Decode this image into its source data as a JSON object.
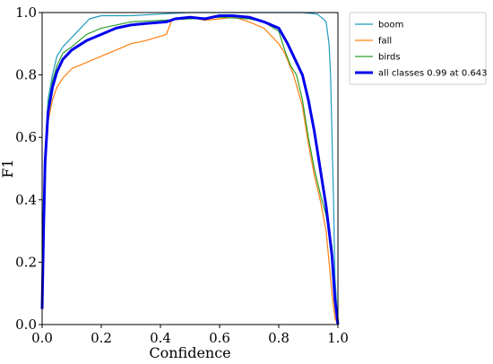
{
  "chart_data": {
    "type": "line",
    "xlabel": "Confidence",
    "ylabel": "F1",
    "xlim": [
      0,
      1
    ],
    "ylim": [
      0,
      1
    ],
    "xticks": [
      "0.0",
      "0.2",
      "0.4",
      "0.6",
      "0.8",
      "1.0"
    ],
    "yticks": [
      "0.0",
      "0.2",
      "0.4",
      "0.6",
      "0.8",
      "1.0"
    ],
    "grid": false,
    "legend_position": "outside-top-right",
    "series": [
      {
        "name": "boom",
        "color": "#1f9bbf",
        "points": [
          [
            0.0,
            0.05
          ],
          [
            0.005,
            0.3
          ],
          [
            0.01,
            0.55
          ],
          [
            0.02,
            0.72
          ],
          [
            0.035,
            0.8
          ],
          [
            0.05,
            0.86
          ],
          [
            0.07,
            0.89
          ],
          [
            0.1,
            0.92
          ],
          [
            0.13,
            0.95
          ],
          [
            0.16,
            0.98
          ],
          [
            0.2,
            0.99
          ],
          [
            0.3,
            0.99
          ],
          [
            0.4,
            0.995
          ],
          [
            0.5,
            1.0
          ],
          [
            0.6,
            1.0
          ],
          [
            0.7,
            1.0
          ],
          [
            0.8,
            1.0
          ],
          [
            0.88,
            1.0
          ],
          [
            0.93,
            0.995
          ],
          [
            0.95,
            0.98
          ],
          [
            0.96,
            0.97
          ],
          [
            0.97,
            0.9
          ],
          [
            0.975,
            0.8
          ],
          [
            0.98,
            0.6
          ],
          [
            0.985,
            0.4
          ],
          [
            0.99,
            0.15
          ],
          [
            1.0,
            0.0
          ]
        ]
      },
      {
        "name": "fall",
        "color": "#ff7f0e",
        "points": [
          [
            0.0,
            0.05
          ],
          [
            0.005,
            0.25
          ],
          [
            0.01,
            0.5
          ],
          [
            0.02,
            0.65
          ],
          [
            0.035,
            0.72
          ],
          [
            0.05,
            0.76
          ],
          [
            0.07,
            0.79
          ],
          [
            0.1,
            0.82
          ],
          [
            0.15,
            0.84
          ],
          [
            0.2,
            0.86
          ],
          [
            0.25,
            0.88
          ],
          [
            0.3,
            0.9
          ],
          [
            0.35,
            0.91
          ],
          [
            0.42,
            0.93
          ],
          [
            0.44,
            0.98
          ],
          [
            0.5,
            0.985
          ],
          [
            0.55,
            0.975
          ],
          [
            0.6,
            0.98
          ],
          [
            0.65,
            0.985
          ],
          [
            0.7,
            0.97
          ],
          [
            0.75,
            0.95
          ],
          [
            0.8,
            0.9
          ],
          [
            0.82,
            0.87
          ],
          [
            0.85,
            0.8
          ],
          [
            0.88,
            0.7
          ],
          [
            0.9,
            0.58
          ],
          [
            0.92,
            0.48
          ],
          [
            0.94,
            0.4
          ],
          [
            0.96,
            0.3
          ],
          [
            0.98,
            0.1
          ],
          [
            0.99,
            0.02
          ],
          [
            1.0,
            0.0
          ]
        ]
      },
      {
        "name": "birds",
        "color": "#2ca02c",
        "points": [
          [
            0.0,
            0.05
          ],
          [
            0.005,
            0.3
          ],
          [
            0.01,
            0.55
          ],
          [
            0.02,
            0.7
          ],
          [
            0.035,
            0.78
          ],
          [
            0.05,
            0.83
          ],
          [
            0.07,
            0.87
          ],
          [
            0.1,
            0.89
          ],
          [
            0.15,
            0.93
          ],
          [
            0.2,
            0.95
          ],
          [
            0.25,
            0.96
          ],
          [
            0.3,
            0.97
          ],
          [
            0.4,
            0.975
          ],
          [
            0.5,
            0.98
          ],
          [
            0.6,
            0.985
          ],
          [
            0.7,
            0.98
          ],
          [
            0.75,
            0.97
          ],
          [
            0.8,
            0.94
          ],
          [
            0.82,
            0.88
          ],
          [
            0.84,
            0.83
          ],
          [
            0.86,
            0.8
          ],
          [
            0.88,
            0.72
          ],
          [
            0.9,
            0.6
          ],
          [
            0.92,
            0.5
          ],
          [
            0.94,
            0.42
          ],
          [
            0.96,
            0.35
          ],
          [
            0.98,
            0.25
          ],
          [
            0.99,
            0.1
          ],
          [
            1.0,
            0.0
          ]
        ]
      },
      {
        "name": "all classes 0.99 at 0.643",
        "color": "#0000ee",
        "bold": true,
        "points": [
          [
            0.0,
            0.05
          ],
          [
            0.005,
            0.3
          ],
          [
            0.01,
            0.52
          ],
          [
            0.02,
            0.68
          ],
          [
            0.035,
            0.76
          ],
          [
            0.05,
            0.81
          ],
          [
            0.07,
            0.85
          ],
          [
            0.1,
            0.88
          ],
          [
            0.15,
            0.91
          ],
          [
            0.2,
            0.93
          ],
          [
            0.25,
            0.95
          ],
          [
            0.3,
            0.96
          ],
          [
            0.35,
            0.965
          ],
          [
            0.42,
            0.97
          ],
          [
            0.45,
            0.98
          ],
          [
            0.5,
            0.985
          ],
          [
            0.55,
            0.98
          ],
          [
            0.6,
            0.99
          ],
          [
            0.643,
            0.99
          ],
          [
            0.7,
            0.985
          ],
          [
            0.75,
            0.97
          ],
          [
            0.8,
            0.95
          ],
          [
            0.83,
            0.9
          ],
          [
            0.85,
            0.86
          ],
          [
            0.88,
            0.8
          ],
          [
            0.9,
            0.72
          ],
          [
            0.92,
            0.62
          ],
          [
            0.94,
            0.5
          ],
          [
            0.96,
            0.38
          ],
          [
            0.98,
            0.22
          ],
          [
            0.99,
            0.08
          ],
          [
            1.0,
            0.0
          ]
        ]
      }
    ]
  }
}
